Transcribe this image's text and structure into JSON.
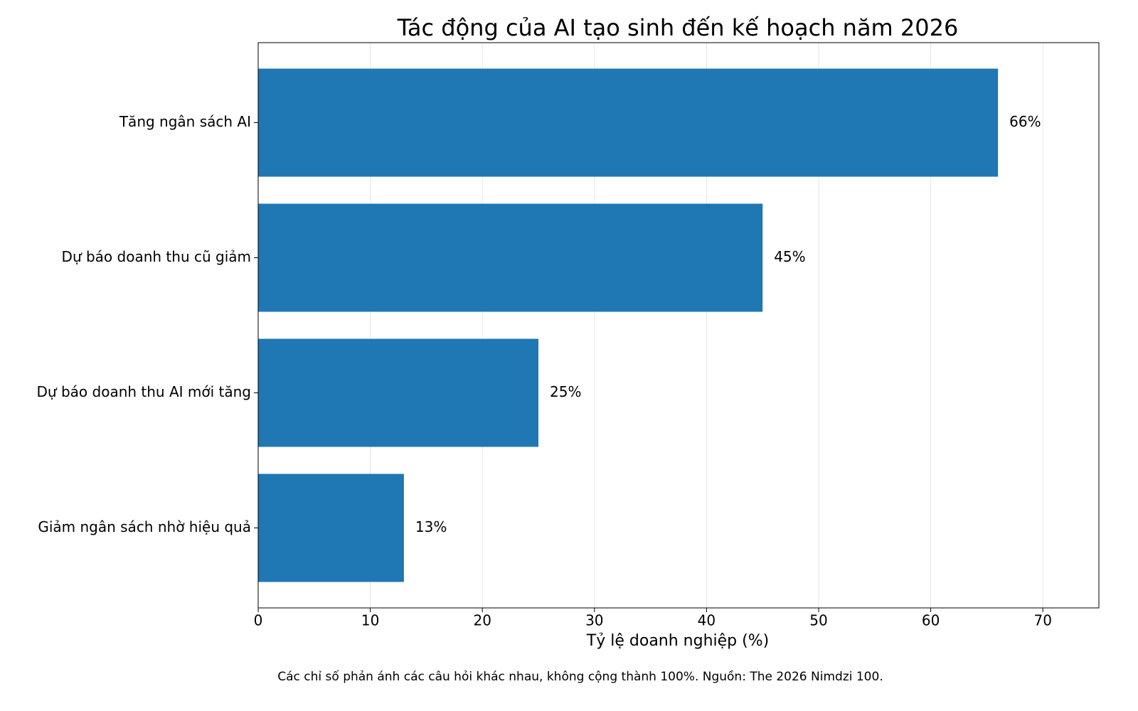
{
  "chart_data": {
    "type": "barh",
    "title": "Tác động của AI tạo sinh đến kế hoạch năm 2026",
    "xlabel": "Tỷ lệ doanh nghiệp (%)",
    "footnote": "Các chỉ số phản ánh các câu hỏi khác nhau, không cộng thành 100%. Nguồn: The 2026 Nimdzi 100.",
    "categories": [
      "Tăng ngân sách AI",
      "Dự báo doanh thu cũ giảm",
      "Dự báo doanh thu AI mới tăng",
      "Giảm ngân sách nhờ hiệu quả"
    ],
    "values": [
      66,
      45,
      25,
      13
    ],
    "value_labels": [
      "66%",
      "45%",
      "25%",
      "13%"
    ],
    "color": "#1f77b4",
    "xlim": [
      0,
      75
    ],
    "xticks": [
      0,
      10,
      20,
      30,
      40,
      50,
      60,
      70
    ],
    "grid": true
  }
}
